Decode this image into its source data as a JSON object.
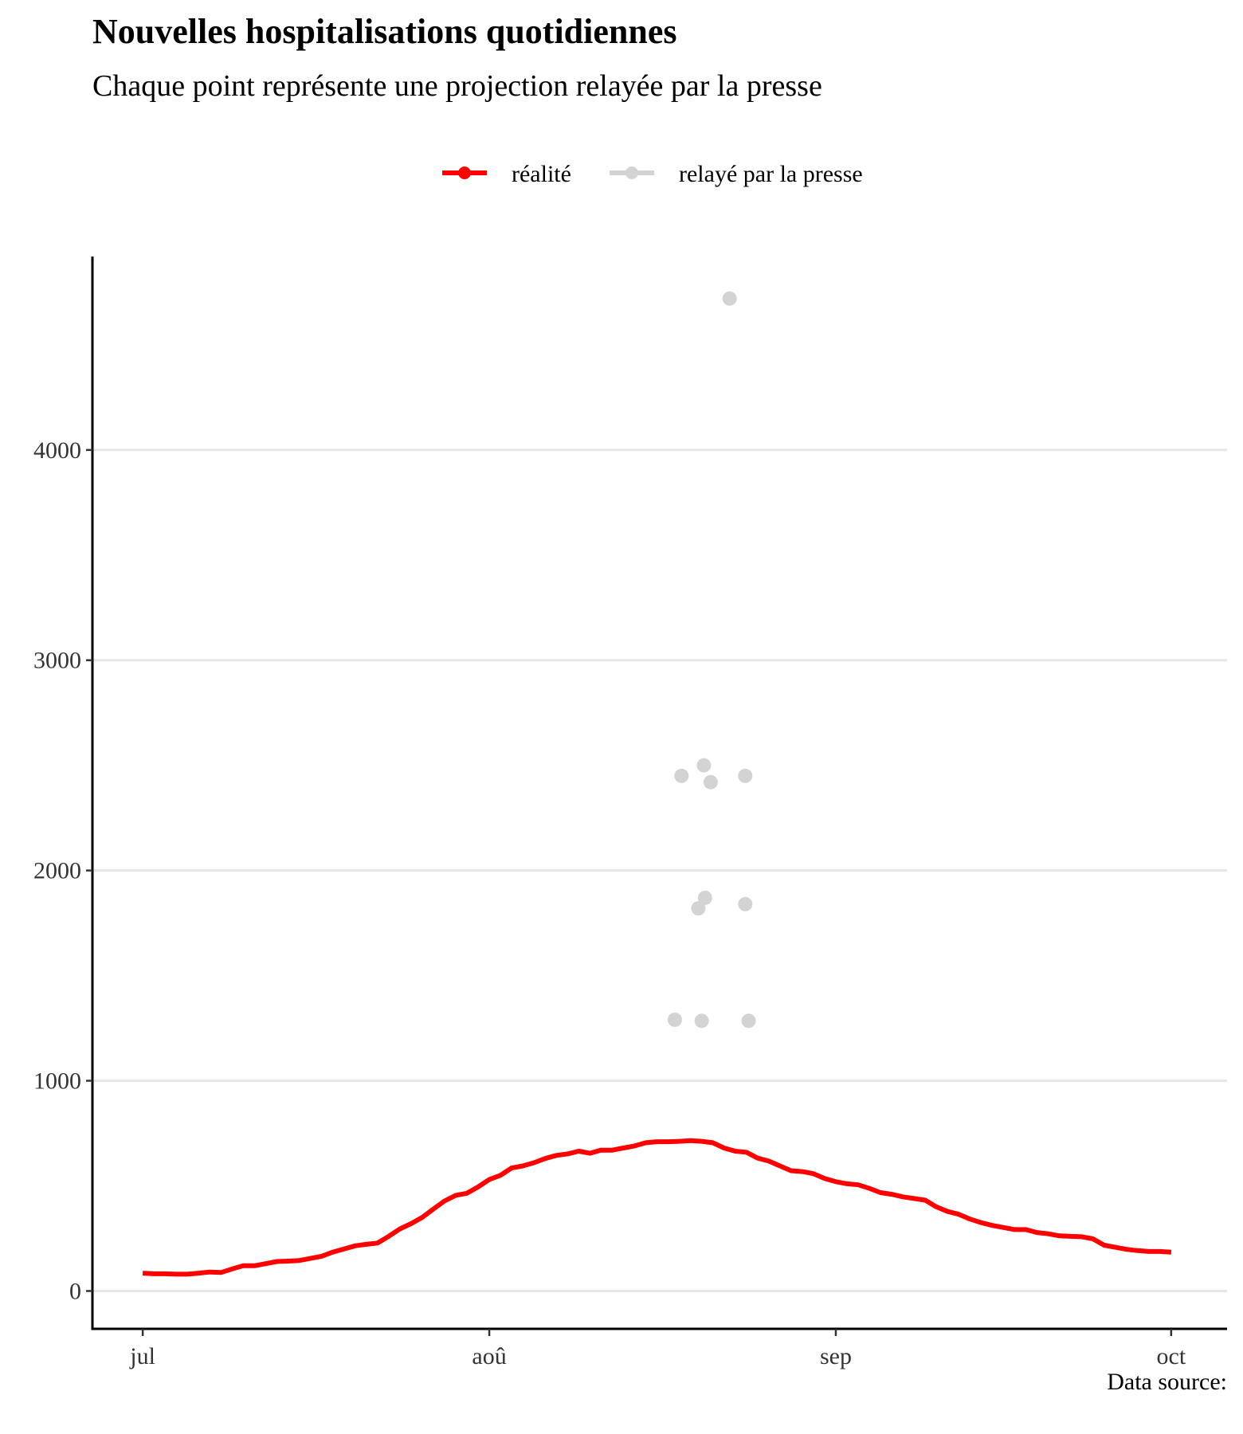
{
  "chart_data": {
    "type": "line",
    "title": "Nouvelles hospitalisations quotidiennes",
    "subtitle": "Chaque point représente une projection relayée par la presse",
    "caption": "Data source:",
    "legend": {
      "position": "top",
      "entries": [
        {
          "label": "réalité",
          "color": "#ff0000"
        },
        {
          "label": "relayé par la presse",
          "color": "#d3d3d3"
        }
      ]
    },
    "x_ticks": [
      {
        "label": "jul",
        "day": 0
      },
      {
        "label": "aoû",
        "day": 31
      },
      {
        "label": "sep",
        "day": 62
      },
      {
        "label": "oct",
        "day": 92
      }
    ],
    "xlim": [
      -4.5,
      97
    ],
    "y_ticks": [
      0,
      1000,
      2000,
      3000,
      4000
    ],
    "ylim": [
      -180,
      4920
    ],
    "grid": {
      "horizontal": true,
      "vertical": false
    },
    "series": [
      {
        "name": "réalité",
        "color": "#ff0000",
        "kind": "line",
        "day_start": 0,
        "values": [
          85,
          82,
          82,
          80,
          80,
          85,
          90,
          88,
          105,
          120,
          120,
          130,
          140,
          142,
          145,
          155,
          165,
          185,
          200,
          215,
          222,
          228,
          260,
          295,
          320,
          350,
          390,
          428,
          455,
          465,
          495,
          530,
          550,
          585,
          595,
          610,
          630,
          645,
          652,
          665,
          655,
          670,
          670,
          680,
          690,
          705,
          710,
          710,
          712,
          715,
          712,
          705,
          680,
          665,
          660,
          632,
          618,
          595,
          572,
          568,
          558,
          535,
          520,
          510,
          505,
          488,
          468,
          460,
          448,
          440,
          432,
          400,
          378,
          365,
          342,
          325,
          312,
          302,
          292,
          292,
          278,
          272,
          262,
          260,
          258,
          248,
          218,
          208,
          198,
          192,
          188,
          188,
          185
        ]
      },
      {
        "name": "relayé par la presse",
        "color": "#d3d3d3",
        "kind": "scatter",
        "points": [
          {
            "day": 52.5,
            "value": 4720
          },
          {
            "day": 48.2,
            "value": 2450
          },
          {
            "day": 50.2,
            "value": 2500
          },
          {
            "day": 50.8,
            "value": 2420
          },
          {
            "day": 53.9,
            "value": 2450
          },
          {
            "day": 49.7,
            "value": 1820
          },
          {
            "day": 50.3,
            "value": 1870
          },
          {
            "day": 53.9,
            "value": 1840
          },
          {
            "day": 47.6,
            "value": 1290
          },
          {
            "day": 50.0,
            "value": 1285
          },
          {
            "day": 54.2,
            "value": 1285
          }
        ]
      }
    ]
  }
}
